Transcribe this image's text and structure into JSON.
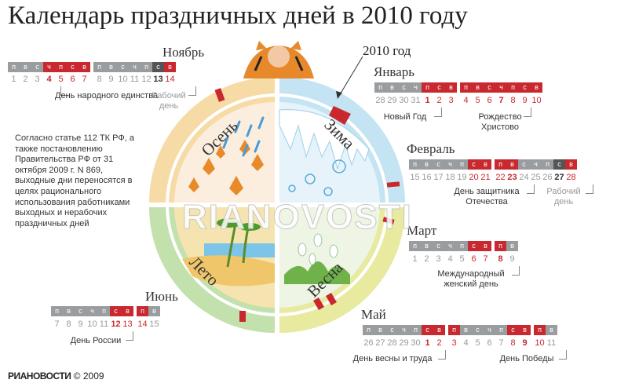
{
  "title": "Календарь праздничных дней в 2010 году",
  "year_label": "2010 год",
  "footer": {
    "brand": "РИАНОВОСТИ",
    "copyright": "© 2009"
  },
  "watermark": "RIANOVOSTI",
  "law_note": "Согласно статье 112 ТК РФ, а также постановлению Правительства РФ от 31 октября 2009 г. N 869, выходные дни переносятся в целях рационального использования работниками выходных и нерабочих праздничных дней",
  "seasons": {
    "autumn": "Осень",
    "winter": "Зима",
    "summer": "Лето",
    "spring": "Весна"
  },
  "weekday_letters": [
    "п",
    "в",
    "с",
    "ч",
    "п",
    "с",
    "в"
  ],
  "colors": {
    "holiday_red": "#c8282e",
    "workday_grey": "#9a9da0",
    "working_weekend": "#555555",
    "autumn": "#f5d49a",
    "winter": "#bfe2f2",
    "summer": "#bddfa8",
    "spring": "#e6ea9c"
  },
  "months": {
    "november": {
      "name": "Ноябрь",
      "days": [
        "1",
        "2",
        "3",
        "4",
        "5",
        "6",
        "7",
        "8",
        "9",
        "10",
        "11",
        "12",
        "13",
        "14"
      ],
      "notes": [
        "День народного единства",
        "Рабочий день"
      ]
    },
    "january": {
      "name": "Январь",
      "days": [
        "28",
        "29",
        "30",
        "31",
        "1",
        "2",
        "3",
        "4",
        "5",
        "6",
        "7",
        "8",
        "9",
        "10"
      ],
      "notes": [
        "Новый Год",
        "Рождество Христово"
      ]
    },
    "february": {
      "name": "Февраль",
      "days": [
        "15",
        "16",
        "17",
        "18",
        "19",
        "20",
        "21",
        "22",
        "23",
        "24",
        "25",
        "26",
        "27",
        "28"
      ],
      "notes": [
        "День защитника Отечества",
        "Рабочий день"
      ]
    },
    "march": {
      "name": "Март",
      "days": [
        "1",
        "2",
        "3",
        "4",
        "5",
        "6",
        "7",
        "8",
        "9"
      ],
      "notes": [
        "Международный женский день"
      ]
    },
    "june": {
      "name": "Июнь",
      "days": [
        "7",
        "8",
        "9",
        "10",
        "11",
        "12",
        "13",
        "14",
        "15"
      ],
      "notes": [
        "День России"
      ]
    },
    "may": {
      "name": "Май",
      "days": [
        "26",
        "27",
        "28",
        "29",
        "30",
        "1",
        "2",
        "3",
        "4",
        "5",
        "6",
        "7",
        "8",
        "9",
        "10",
        "11"
      ],
      "notes": [
        "День весны и труда",
        "День Победы"
      ]
    }
  }
}
